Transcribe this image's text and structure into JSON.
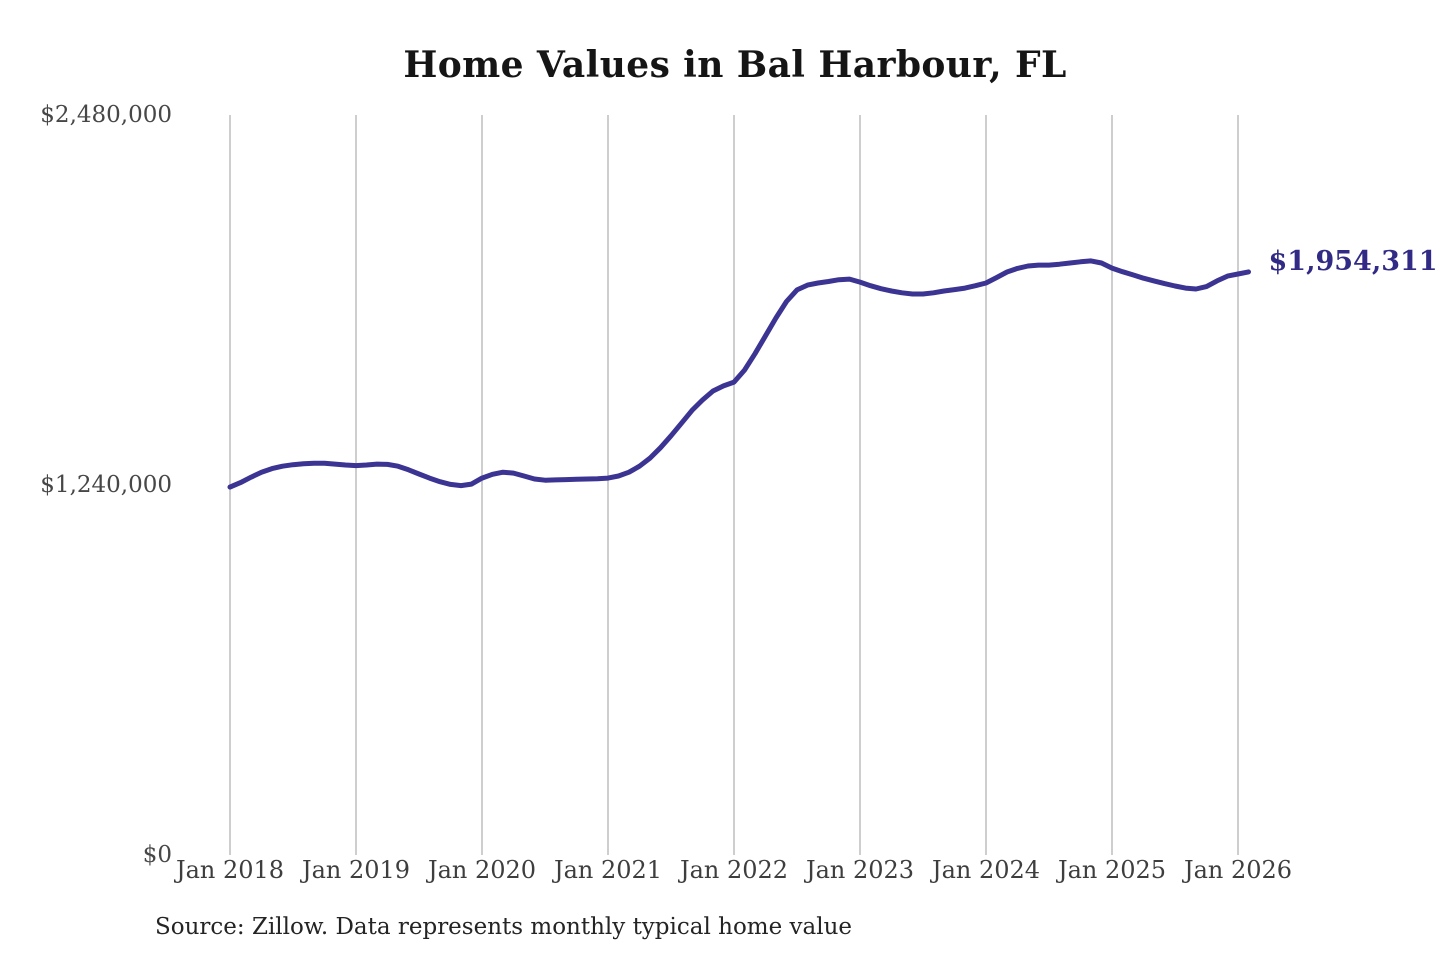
{
  "chart": {
    "title": "Home Values in Bal Harbour, FL",
    "source_note": "Source: Zillow. Data represents monthly typical home value"
  },
  "chart_data": {
    "type": "line",
    "title": "Home Values in Bal Harbour, FL",
    "xlabel": "",
    "ylabel": "",
    "x_tick_labels": [
      "Jan 2018",
      "Jan 2019",
      "Jan 2020",
      "Jan 2021",
      "Jan 2022",
      "Jan 2023",
      "Jan 2024",
      "Jan 2025",
      "Jan 2026"
    ],
    "y_ticks": [
      {
        "label": "$0",
        "value": 0
      },
      {
        "label": "$1,240,000",
        "value": 1240000
      },
      {
        "label": "$2,480,000",
        "value": 2480000
      }
    ],
    "ylim": [
      0,
      2480000
    ],
    "grid": "vertical-only",
    "grid_color": "#c9c9c9",
    "line_color": "#3b3492",
    "annotation_color": "#312b86",
    "annotation": {
      "text": "$1,954,311",
      "value": 1954311,
      "position": "end-of-line"
    },
    "series": [
      {
        "name": "Monthly typical home value",
        "start": "2018-01",
        "frequency": "monthly",
        "values": [
          1233000,
          1248000,
          1266000,
          1283000,
          1295000,
          1303000,
          1308000,
          1311000,
          1313000,
          1313000,
          1310000,
          1307000,
          1305000,
          1307000,
          1310000,
          1309000,
          1303000,
          1291000,
          1277000,
          1263000,
          1251000,
          1242000,
          1238000,
          1243000,
          1263000,
          1276000,
          1283000,
          1280000,
          1270000,
          1260000,
          1256000,
          1257000,
          1258000,
          1259000,
          1260000,
          1261000,
          1263000,
          1270000,
          1283000,
          1303000,
          1330000,
          1365000,
          1405000,
          1447000,
          1490000,
          1525000,
          1555000,
          1572000,
          1585000,
          1625000,
          1680000,
          1740000,
          1800000,
          1855000,
          1894000,
          1910000,
          1917000,
          1922000,
          1928000,
          1930000,
          1920000,
          1908000,
          1898000,
          1890000,
          1884000,
          1880000,
          1880000,
          1884000,
          1890000,
          1895000,
          1900000,
          1908000,
          1917000,
          1935000,
          1954000,
          1966000,
          1974000,
          1977000,
          1977000,
          1980000,
          1984000,
          1988000,
          1991000,
          1984000,
          1967000,
          1955000,
          1944000,
          1933000,
          1924000,
          1915000,
          1907000,
          1900000,
          1897000,
          1905000,
          1924000,
          1940000,
          1947000,
          1954311
        ]
      }
    ]
  }
}
